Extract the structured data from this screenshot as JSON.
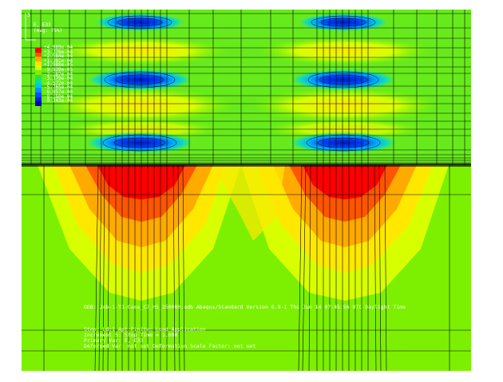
{
  "viewport": {
    "legend": {
      "title": "E, E33",
      "subtitle": "(Avg: 75%)",
      "values": [
        "+4.969e-04",
        "+3.776e-04",
        "+2.584e-04",
        "+1.391e-04",
        "+1.988e-05",
        "-9.939e-05",
        "-2.187e-04",
        "-3.379e-04",
        "-4.572e-04",
        "-5.765e-04",
        "-6.957e-04",
        "-8.150e-04",
        "-9.343e-04"
      ],
      "colors": [
        "#ff0000",
        "#ff5500",
        "#ffaa00",
        "#ffe000",
        "#d4ff00",
        "#7cf000",
        "#2ee040",
        "#00e0a0",
        "#00c8e0",
        "#0090ff",
        "#0050ff",
        "#0020e0",
        "#0000c0"
      ]
    },
    "info": {
      "odb": "ODB: Job-1-T1-Case_C7_HS_250000.odb    Abaqus/Standard Version 6.9-1    Thu Jun 14 07:45:56 UTC Daylight Time",
      "step": "Step: Ld:1 Apt:Finite:  Load Application",
      "increment": "Increment    5: Step Time =    1.000",
      "primary": "Primary Var: E, E33",
      "deformed": "Deformed Var: not set   Deformation Scale Factor: not set"
    },
    "triad": {
      "axis_label": "3"
    }
  }
}
